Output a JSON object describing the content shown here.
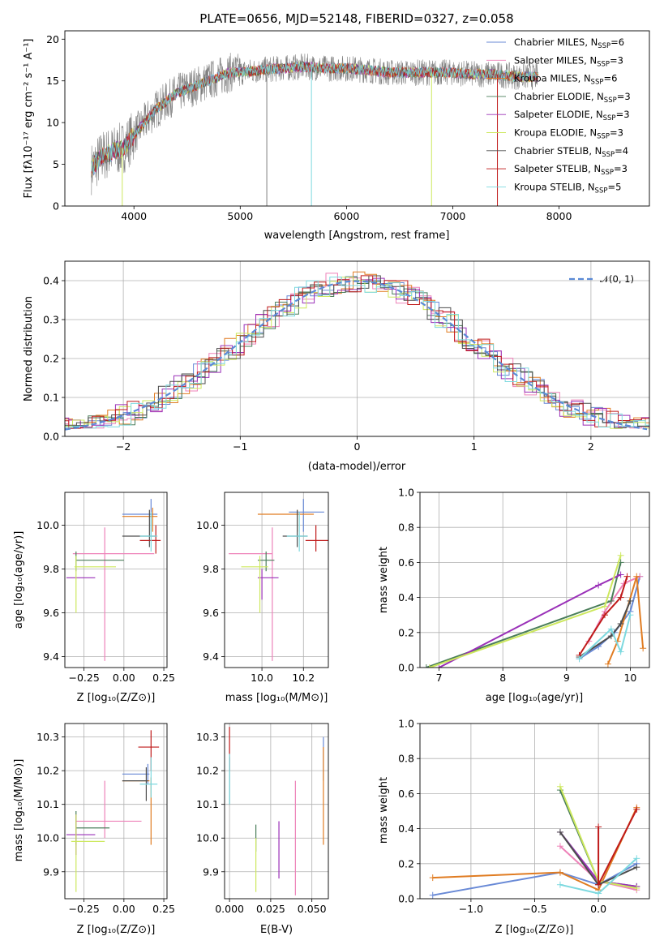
{
  "colors": {
    "chabrier_miles": "#6889d6",
    "salpeter_miles": "#ee82b9",
    "kroupa_miles": "#e07c22",
    "chabrier_elodie": "#4a7e5a",
    "salpeter_elodie": "#9a30b8",
    "kroupa_elodie": "#cde85e",
    "chabrier_stelib": "#4d4d4d",
    "salpeter_stelib": "#bf1a1a",
    "kroupa_stelib": "#7dd9df",
    "data": "#808080",
    "normal": "#5b8ad6"
  },
  "chart_data": [
    {
      "id": "spectrum",
      "type": "line",
      "title": "PLATE=0656, MJD=52148, FIBERID=0327, z=0.058",
      "xlabel": "wavelength [Angstrom, rest frame]",
      "ylabel": "Flux [fλ10⁻¹⁷ erg cm⁻² s⁻¹ A⁻¹]",
      "xlim": [
        3350,
        8850
      ],
      "ylim": [
        0,
        21
      ],
      "xticks": [
        "4000",
        "5000",
        "6000",
        "7000",
        "8000"
      ],
      "yticks": [
        "0",
        "5",
        "10",
        "15",
        "20"
      ],
      "legend_position": "top-right",
      "legend": [
        "Chabrier MILES, N_SSP=6",
        "Salpeter MILES, N_SSP=3",
        "Kroupa MILES, N_SSP=6",
        "Chabrier ELODIE, N_SSP=3",
        "Salpeter ELODIE, N_SSP=3",
        "Kroupa ELODIE, N_SSP=3",
        "Chabrier STELIB, N_SSP=4",
        "Salpeter STELIB, N_SSP=3",
        "Kroupa STELIB, N_SSP=5"
      ],
      "continuum": {
        "x": [
          3600,
          3700,
          3800,
          3900,
          4000,
          4100,
          4200,
          4300,
          4400,
          4500,
          4600,
          4700,
          4800,
          4900,
          5000,
          5200,
          5400,
          5600,
          5800,
          6000,
          6200,
          6400,
          6600,
          6800,
          7000,
          7200,
          7400,
          7600,
          7800
        ],
        "y": [
          4.5,
          6.0,
          6.5,
          7.0,
          8.5,
          10.0,
          11.5,
          12.5,
          13.5,
          14.0,
          14.5,
          15.0,
          15.5,
          16.0,
          16.0,
          16.3,
          16.5,
          16.7,
          16.5,
          16.5,
          16.3,
          16.0,
          16.0,
          16.0,
          16.0,
          15.8,
          15.8,
          15.5,
          15.5
        ]
      }
    },
    {
      "id": "residuals",
      "type": "histogram",
      "xlabel": "(data-model)/error",
      "ylabel": "Normed distribution",
      "xlim": [
        -2.5,
        2.5
      ],
      "ylim": [
        0,
        0.45
      ],
      "xticks": [
        "−2",
        "−1",
        "0",
        "1",
        "2"
      ],
      "yticks": [
        "0.0",
        "0.1",
        "0.2",
        "0.3",
        "0.4"
      ],
      "legend": [
        "N(0,1)"
      ],
      "legend_symbol": "𝒩(0, 1)",
      "grid": true
    },
    {
      "id": "age_vs_Z",
      "type": "scatter",
      "xlabel": "Z [log₁₀(Z/Z⊙)]",
      "ylabel": "age  [log₁₀(age/yr)]",
      "xlim": [
        -0.37,
        0.27
      ],
      "ylim": [
        9.35,
        10.15
      ],
      "xticks": [
        "−0.25",
        "0.00",
        "0.25"
      ],
      "yticks": [
        "9.4",
        "9.6",
        "9.8",
        "10.0"
      ],
      "points": [
        {
          "s": "chabrier_miles",
          "x": 0.17,
          "y": 10.05,
          "xe": 0.17,
          "ye": 0.05
        },
        {
          "s": "salpeter_miles",
          "x": -0.12,
          "y": 9.87,
          "xe": 0.2,
          "ye": 0.48
        },
        {
          "s": "kroupa_miles",
          "x": 0.17,
          "y": 10.05,
          "xe": 0.17,
          "ye": 0.05
        },
        {
          "s": "chabrier_elodie",
          "x": -0.3,
          "y": 9.84,
          "xe": 0.0,
          "ye": 0.06
        },
        {
          "s": "salpeter_elodie",
          "x": -0.3,
          "y": 9.76,
          "xe": 0.0,
          "ye": 0.0
        },
        {
          "s": "kroupa_elodie",
          "x": -0.3,
          "y": 9.81,
          "xe": 0.0,
          "ye": 0.2
        },
        {
          "s": "chabrier_stelib",
          "x": 0.17,
          "y": 9.95,
          "xe": 0.05,
          "ye": 0.1
        },
        {
          "s": "salpeter_stelib",
          "x": 0.17,
          "y": 9.93,
          "xe": 0.05,
          "ye": 0.06
        },
        {
          "s": "kroupa_stelib",
          "x": 0.17,
          "y": 9.95,
          "xe": 0.05,
          "ye": 0.1
        }
      ]
    },
    {
      "id": "age_vs_mass",
      "type": "scatter",
      "xlabel": "mass [log₁₀(M/M⊙)]",
      "ylabel": "",
      "xlim": [
        9.82,
        10.32
      ],
      "ylim": [
        9.35,
        10.15
      ],
      "xticks": [
        "10.0",
        "10.2"
      ],
      "yticks": [
        "9.4",
        "9.6",
        "9.8",
        "10.0"
      ],
      "points": [
        {
          "s": "chabrier_miles",
          "x": 10.18,
          "y": 10.05
        },
        {
          "s": "salpeter_miles",
          "x": 10.05,
          "y": 9.87
        },
        {
          "s": "kroupa_miles",
          "x": 10.17,
          "y": 10.05
        },
        {
          "s": "chabrier_elodie",
          "x": 10.02,
          "y": 9.84
        },
        {
          "s": "salpeter_elodie",
          "x": 10.0,
          "y": 9.76
        },
        {
          "s": "kroupa_elodie",
          "x": 9.99,
          "y": 9.81
        },
        {
          "s": "chabrier_stelib",
          "x": 10.17,
          "y": 9.95
        },
        {
          "s": "salpeter_stelib",
          "x": 10.26,
          "y": 9.93
        },
        {
          "s": "kroupa_stelib",
          "x": 10.18,
          "y": 9.95
        }
      ]
    },
    {
      "id": "weight_vs_age",
      "type": "line",
      "xlabel": "age  [log₁₀(age/yr)]",
      "ylabel": "mass weight",
      "xlim": [
        6.7,
        10.3
      ],
      "ylim": [
        0,
        1
      ],
      "xticks": [
        "7",
        "8",
        "9",
        "10"
      ],
      "yticks": [
        "0.0",
        "0.2",
        "0.4",
        "0.6",
        "0.8",
        "1.0"
      ]
    },
    {
      "id": "mass_vs_Z",
      "type": "scatter",
      "xlabel": "Z [log₁₀(Z/Z⊙)]",
      "ylabel": "mass [log₁₀(M/M⊙)]",
      "xlim": [
        -0.37,
        0.27
      ],
      "ylim": [
        9.82,
        10.34
      ],
      "xticks": [
        "−0.25",
        "0.00",
        "0.25"
      ],
      "yticks": [
        "9.9",
        "10.0",
        "10.1",
        "10.2",
        "10.3"
      ]
    },
    {
      "id": "mass_vs_ebv",
      "type": "scatter",
      "xlabel": "E(B-V)",
      "ylabel": "",
      "xlim": [
        -0.003,
        0.06
      ],
      "ylim": [
        9.82,
        10.34
      ],
      "xticks": [
        "0.000",
        "0.025",
        "0.050"
      ],
      "yticks": [
        "9.9",
        "10.0",
        "10.1",
        "10.2",
        "10.3"
      ]
    },
    {
      "id": "weight_vs_Z",
      "type": "line",
      "xlabel": "Z [log₁₀(Z/Z⊙)]",
      "ylabel": "mass weight",
      "xlim": [
        -1.4,
        0.4
      ],
      "ylim": [
        0,
        1
      ],
      "xticks": [
        "−1.0",
        "−0.5",
        "0.0"
      ],
      "yticks": [
        "0.0",
        "0.2",
        "0.4",
        "0.6",
        "0.8",
        "1.0"
      ]
    }
  ]
}
